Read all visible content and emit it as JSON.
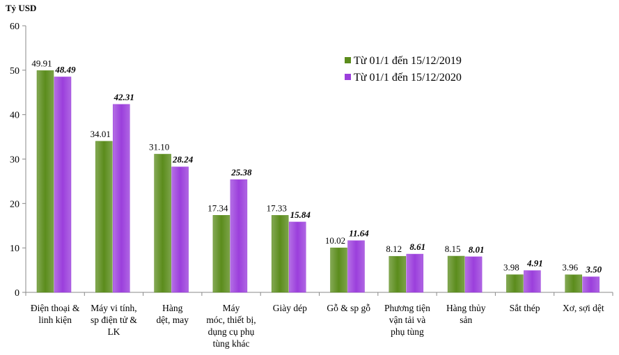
{
  "chart_data": {
    "type": "bar",
    "ylabel": "Tỷ USD",
    "ylim": [
      0,
      60
    ],
    "yticks": [
      "0",
      "10",
      "20",
      "30",
      "40",
      "50",
      "60"
    ],
    "grid": false,
    "legend_position": "top-right",
    "categories": [
      [
        "Điện thoại &",
        "linh kiện"
      ],
      [
        "Máy vi tính,",
        "sp điện tử &",
        "LK"
      ],
      [
        "Hàng",
        "dệt, may"
      ],
      [
        "Máy",
        "móc, thiết bị,",
        "dụng cụ phụ",
        "tùng khác"
      ],
      [
        "Giày dép"
      ],
      [
        "Gỗ & sp gỗ"
      ],
      [
        "Phương tiện",
        "vận tải và",
        "phụ tùng"
      ],
      [
        "Hàng thủy",
        "sản"
      ],
      [
        "Sắt thép"
      ],
      [
        "Xơ, sợi dệt"
      ]
    ],
    "series": [
      {
        "name": "Từ 01/1 đến 15/12/2019",
        "color": "#5b8c1c",
        "values": [
          49.91,
          34.01,
          31.1,
          17.34,
          17.33,
          10.02,
          8.12,
          8.15,
          3.98,
          3.96
        ],
        "labels": [
          "49.91",
          "34.01",
          "31.10",
          "17.34",
          "17.33",
          "10.02",
          "8.12",
          "8.15",
          "3.98",
          "3.96"
        ]
      },
      {
        "name": "Từ 01/1 đến 15/12/2020",
        "color": "#9b3fdc",
        "values": [
          48.49,
          42.31,
          28.24,
          25.38,
          15.84,
          11.64,
          8.61,
          8.01,
          4.91,
          3.5
        ],
        "labels": [
          "48.49",
          "42.31",
          "28.24",
          "25.38",
          "15.84",
          "11.64",
          "8.61",
          "8.01",
          "4.91",
          "3.50"
        ]
      }
    ]
  }
}
